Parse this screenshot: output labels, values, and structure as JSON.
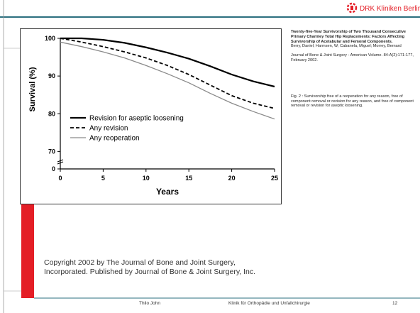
{
  "logo": "DRK Kliniken Berlin",
  "chart_data": {
    "type": "line",
    "xlabel": "Years",
    "ylabel": "Survival (%)",
    "x": [
      0,
      2.5,
      5,
      7.5,
      10,
      12.5,
      15,
      17.5,
      20,
      22.5,
      25
    ],
    "series": [
      {
        "name": "Revision for aseptic loosening",
        "color": "#000000",
        "dashed": false,
        "values": [
          100,
          100,
          99.6,
          98.8,
          97.6,
          96.2,
          94.6,
          92.6,
          90.4,
          88.6,
          87.2
        ]
      },
      {
        "name": "Any revision",
        "color": "#000000",
        "dashed": true,
        "values": [
          100,
          99,
          97.8,
          96.4,
          94.8,
          92.8,
          90.4,
          87.6,
          84.8,
          82.8,
          81.4
        ]
      },
      {
        "name": "Any reoperation",
        "color": "#8a8a8a",
        "dashed": false,
        "values": [
          99,
          97.8,
          96.4,
          94.8,
          92.8,
          90.6,
          88.2,
          85.4,
          82.8,
          80.6,
          78.6
        ]
      }
    ],
    "xlim": [
      0,
      25
    ],
    "xticks": [
      0,
      5,
      10,
      15,
      20,
      25
    ],
    "ylim": [
      0,
      100
    ],
    "yticks": [
      0,
      70,
      80,
      90,
      100
    ],
    "y_break": [
      0,
      68
    ]
  },
  "reference": {
    "title": "Twenty-five-Year Survivorship of Two Thousand Consecutive Primary Charnley Total Hip Replacements: Factors Affecting Survivorship of Acetabular and Femoral Components.",
    "authors": "Berry, Daniel; Harmsen, W; Cabanela, Miguel; Morrey, Bernard",
    "journal": "Journal of Bone & Joint Surgery - American Volume. 84-A(2):171-177, February 2002."
  },
  "caption": "Fig. 2 : Survivorship free of a reoperation for any reason, free of component removal or revision for any reason, and free of component removal or revision for aseptic loosening.",
  "copyright": [
    "Copyright 2002 by The Journal of Bone and Joint Surgery,",
    "Incorporated.  Published by Journal of Bone & Joint Surgery, Inc."
  ],
  "footer": {
    "author": "Thilo John",
    "department": "Klinik für Orthopädie und Unfallchirurgie",
    "page": "12"
  }
}
